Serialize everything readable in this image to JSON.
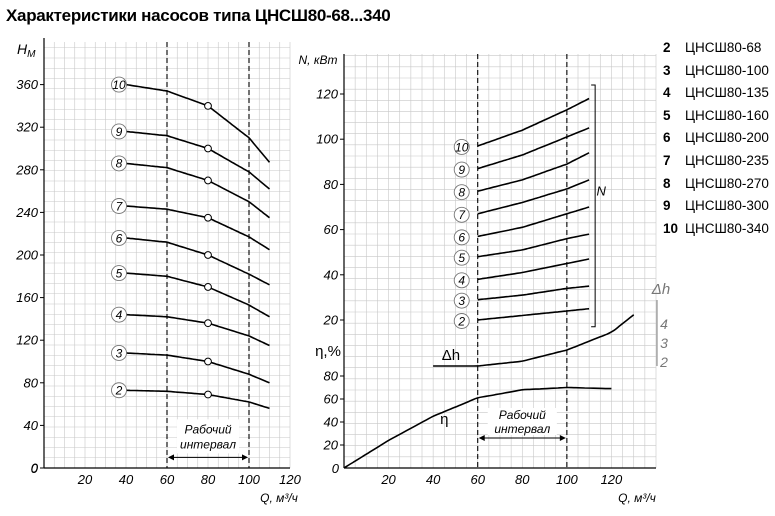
{
  "title": "Характеристики насосов типа ЦНСШ80-68...340",
  "legend": [
    {
      "num": "2",
      "name": "ЦНСШ80-68"
    },
    {
      "num": "3",
      "name": "ЦНСШ80-100"
    },
    {
      "num": "4",
      "name": "ЦНСШ80-135"
    },
    {
      "num": "5",
      "name": "ЦНСШ80-160"
    },
    {
      "num": "6",
      "name": "ЦНСШ80-200"
    },
    {
      "num": "7",
      "name": "ЦНСШ80-235"
    },
    {
      "num": "8",
      "name": "ЦНСШ80-270"
    },
    {
      "num": "9",
      "name": "ЦНСШ80-300"
    },
    {
      "num": "10",
      "name": "ЦНСШ80-340"
    }
  ],
  "chart_data": [
    {
      "type": "line",
      "ylabel_main": "H",
      "ylabel_sub": "М",
      "xlabel": "Q, м³/ч",
      "xlim": [
        0,
        120
      ],
      "ylim": [
        0,
        400
      ],
      "x_ticks": [
        0,
        20,
        40,
        60,
        80,
        100,
        120
      ],
      "y_ticks": [
        0,
        40,
        80,
        120,
        160,
        200,
        240,
        280,
        320,
        360
      ],
      "grid": true,
      "working_interval": {
        "from": 60,
        "to": 100,
        "label_line1": "Рабочий",
        "label_line2": "интервал"
      },
      "series": [
        {
          "name": "2",
          "x": [
            40,
            60,
            80,
            100,
            110
          ],
          "y": [
            73,
            72,
            69,
            62,
            56
          ]
        },
        {
          "name": "3",
          "x": [
            40,
            60,
            80,
            100,
            110
          ],
          "y": [
            108,
            106,
            100,
            88,
            80
          ]
        },
        {
          "name": "4",
          "x": [
            40,
            60,
            80,
            100,
            110
          ],
          "y": [
            144,
            142,
            136,
            124,
            115
          ]
        },
        {
          "name": "5",
          "x": [
            40,
            60,
            80,
            100,
            110
          ],
          "y": [
            183,
            180,
            170,
            153,
            142
          ]
        },
        {
          "name": "6",
          "x": [
            40,
            60,
            80,
            100,
            110
          ],
          "y": [
            216,
            212,
            200,
            182,
            172
          ]
        },
        {
          "name": "7",
          "x": [
            40,
            60,
            80,
            100,
            110
          ],
          "y": [
            246,
            243,
            235,
            217,
            205
          ]
        },
        {
          "name": "8",
          "x": [
            40,
            60,
            80,
            100,
            110
          ],
          "y": [
            286,
            282,
            270,
            250,
            235
          ]
        },
        {
          "name": "9",
          "x": [
            40,
            60,
            80,
            100,
            110
          ],
          "y": [
            316,
            312,
            300,
            278,
            262
          ]
        },
        {
          "name": "10",
          "x": [
            40,
            60,
            80,
            100,
            110
          ],
          "y": [
            360,
            354,
            340,
            310,
            287
          ]
        }
      ],
      "marker_x": 80
    },
    {
      "type": "line",
      "ylabel": "N, кВт",
      "xlabel": "Q, м³/ч",
      "xlim": [
        0,
        140
      ],
      "x_ticks": [
        0,
        20,
        40,
        60,
        80,
        100,
        120
      ],
      "power_axis": {
        "ticks": [
          20,
          40,
          60,
          80,
          100,
          120
        ],
        "series_label": "N"
      },
      "efficiency_axis": {
        "label": "η,%",
        "ticks": [
          0,
          20,
          40,
          60,
          80
        ]
      },
      "grid": true,
      "working_interval": {
        "from": 60,
        "to": 100,
        "label_line1": "Рабочий",
        "label_line2": "интервал"
      },
      "power_series": [
        {
          "name": "2",
          "x": [
            60,
            80,
            100,
            110
          ],
          "y": [
            20,
            22,
            24,
            25
          ]
        },
        {
          "name": "3",
          "x": [
            60,
            80,
            100,
            110
          ],
          "y": [
            29,
            31,
            34,
            35
          ]
        },
        {
          "name": "4",
          "x": [
            60,
            80,
            100,
            110
          ],
          "y": [
            38,
            41,
            45,
            47
          ]
        },
        {
          "name": "5",
          "x": [
            60,
            80,
            100,
            110
          ],
          "y": [
            48,
            51,
            56,
            58
          ]
        },
        {
          "name": "6",
          "x": [
            60,
            80,
            100,
            110
          ],
          "y": [
            57,
            61,
            67,
            70
          ]
        },
        {
          "name": "7",
          "x": [
            60,
            80,
            100,
            110
          ],
          "y": [
            67,
            72,
            78,
            82
          ]
        },
        {
          "name": "8",
          "x": [
            60,
            80,
            100,
            110
          ],
          "y": [
            77,
            82,
            89,
            94
          ]
        },
        {
          "name": "9",
          "x": [
            60,
            80,
            100,
            110
          ],
          "y": [
            87,
            93,
            101,
            105
          ]
        },
        {
          "name": "10",
          "x": [
            60,
            80,
            100,
            110
          ],
          "y": [
            97,
            104,
            113,
            118
          ]
        }
      ],
      "efficiency_series": {
        "name": "η",
        "x": [
          0,
          20,
          40,
          60,
          80,
          100,
          120
        ],
        "y": [
          0,
          24,
          45,
          61,
          68,
          70,
          69
        ]
      },
      "npsh_axis": {
        "label": "Δh",
        "ticks": [
          "4",
          "3",
          "2"
        ]
      },
      "npsh_series": {
        "name": "Δh",
        "x": [
          40,
          60,
          80,
          100,
          120,
          130
        ],
        "y": [
          0,
          0,
          0.3,
          1.0,
          2.1,
          3.2
        ]
      }
    }
  ]
}
